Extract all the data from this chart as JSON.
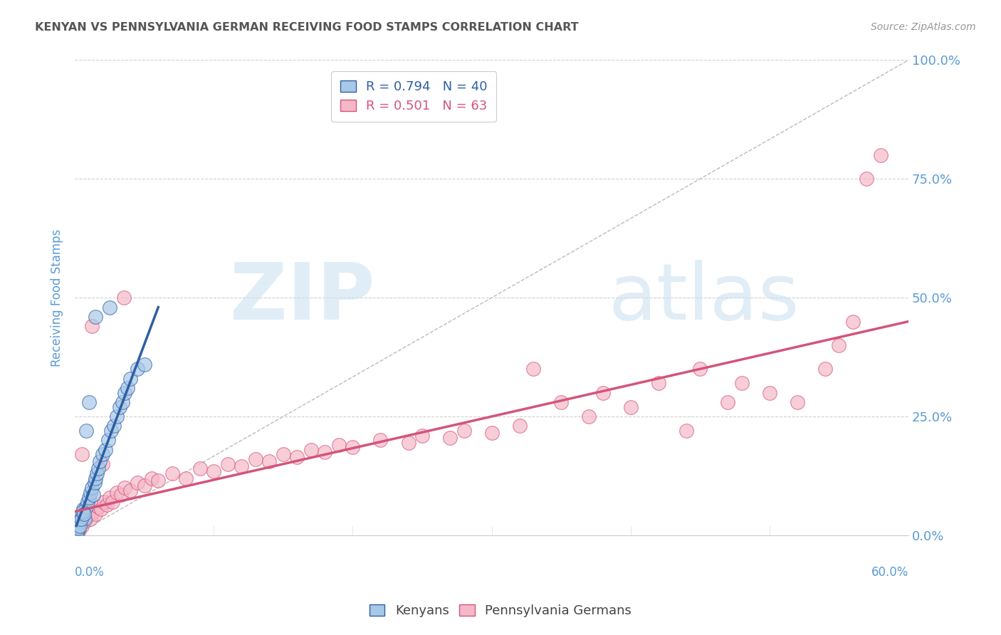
{
  "title": "KENYAN VS PENNSYLVANIA GERMAN RECEIVING FOOD STAMPS CORRELATION CHART",
  "source": "Source: ZipAtlas.com",
  "ylabel": "Receiving Food Stamps",
  "yticks": [
    0.0,
    25.0,
    50.0,
    75.0,
    100.0
  ],
  "ytick_labels": [
    "0.0%",
    "25.0%",
    "50.0%",
    "75.0%",
    "100.0%"
  ],
  "xtick_labels": [
    "0.0%",
    "60.0%"
  ],
  "xlim": [
    0.0,
    60.0
  ],
  "ylim": [
    0.0,
    100.0
  ],
  "kenyan_color": "#a8c8e8",
  "pg_color": "#f5b8c8",
  "kenyan_line_color": "#2e5fa3",
  "pg_line_color": "#d4547a",
  "title_color": "#555555",
  "axis_label_color": "#5b9bd5",
  "tick_color": "#5b9bd5",
  "legend_r1": "R = 0.794",
  "legend_n1": "N = 40",
  "legend_r2": "R = 0.501",
  "legend_n2": "N = 63",
  "kenyan_points": [
    [
      0.2,
      1.0
    ],
    [
      0.3,
      2.5
    ],
    [
      0.4,
      3.0
    ],
    [
      0.5,
      4.0
    ],
    [
      0.6,
      5.5
    ],
    [
      0.7,
      3.5
    ],
    [
      0.8,
      6.0
    ],
    [
      0.9,
      7.0
    ],
    [
      1.0,
      8.0
    ],
    [
      1.1,
      9.0
    ],
    [
      1.2,
      10.0
    ],
    [
      1.3,
      8.5
    ],
    [
      1.4,
      11.0
    ],
    [
      1.5,
      12.0
    ],
    [
      1.6,
      13.0
    ],
    [
      1.7,
      14.0
    ],
    [
      1.8,
      15.5
    ],
    [
      2.0,
      17.0
    ],
    [
      2.2,
      18.0
    ],
    [
      2.4,
      20.0
    ],
    [
      2.6,
      22.0
    ],
    [
      2.8,
      23.0
    ],
    [
      3.0,
      25.0
    ],
    [
      3.2,
      27.0
    ],
    [
      3.4,
      28.0
    ],
    [
      3.6,
      30.0
    ],
    [
      3.8,
      31.0
    ],
    [
      4.0,
      33.0
    ],
    [
      4.5,
      35.0
    ],
    [
      5.0,
      36.0
    ],
    [
      0.15,
      0.5
    ],
    [
      0.25,
      1.5
    ],
    [
      0.35,
      2.0
    ],
    [
      0.45,
      3.5
    ],
    [
      0.55,
      5.0
    ],
    [
      0.65,
      4.5
    ],
    [
      1.5,
      46.0
    ],
    [
      2.5,
      48.0
    ],
    [
      0.8,
      22.0
    ],
    [
      1.0,
      28.0
    ]
  ],
  "pg_points": [
    [
      0.3,
      1.0
    ],
    [
      0.5,
      2.0
    ],
    [
      0.7,
      3.0
    ],
    [
      0.9,
      4.0
    ],
    [
      1.1,
      3.5
    ],
    [
      1.3,
      5.0
    ],
    [
      1.5,
      4.5
    ],
    [
      1.7,
      6.0
    ],
    [
      1.9,
      5.5
    ],
    [
      2.1,
      7.0
    ],
    [
      2.3,
      6.5
    ],
    [
      2.5,
      8.0
    ],
    [
      2.7,
      7.0
    ],
    [
      3.0,
      9.0
    ],
    [
      3.3,
      8.5
    ],
    [
      3.6,
      10.0
    ],
    [
      4.0,
      9.5
    ],
    [
      4.5,
      11.0
    ],
    [
      5.0,
      10.5
    ],
    [
      5.5,
      12.0
    ],
    [
      6.0,
      11.5
    ],
    [
      7.0,
      13.0
    ],
    [
      8.0,
      12.0
    ],
    [
      9.0,
      14.0
    ],
    [
      10.0,
      13.5
    ],
    [
      11.0,
      15.0
    ],
    [
      12.0,
      14.5
    ],
    [
      13.0,
      16.0
    ],
    [
      14.0,
      15.5
    ],
    [
      15.0,
      17.0
    ],
    [
      16.0,
      16.5
    ],
    [
      17.0,
      18.0
    ],
    [
      18.0,
      17.5
    ],
    [
      19.0,
      19.0
    ],
    [
      20.0,
      18.5
    ],
    [
      22.0,
      20.0
    ],
    [
      24.0,
      19.5
    ],
    [
      25.0,
      21.0
    ],
    [
      27.0,
      20.5
    ],
    [
      28.0,
      22.0
    ],
    [
      30.0,
      21.5
    ],
    [
      32.0,
      23.0
    ],
    [
      33.0,
      35.0
    ],
    [
      35.0,
      28.0
    ],
    [
      37.0,
      25.0
    ],
    [
      38.0,
      30.0
    ],
    [
      40.0,
      27.0
    ],
    [
      42.0,
      32.0
    ],
    [
      44.0,
      22.0
    ],
    [
      45.0,
      35.0
    ],
    [
      47.0,
      28.0
    ],
    [
      48.0,
      32.0
    ],
    [
      50.0,
      30.0
    ],
    [
      52.0,
      28.0
    ],
    [
      54.0,
      35.0
    ],
    [
      55.0,
      40.0
    ],
    [
      56.0,
      45.0
    ],
    [
      57.0,
      75.0
    ],
    [
      58.0,
      80.0
    ],
    [
      1.2,
      44.0
    ],
    [
      2.0,
      15.0
    ],
    [
      3.5,
      50.0
    ],
    [
      0.5,
      17.0
    ]
  ],
  "kenyan_line": {
    "x0": 0.1,
    "y0": 2.0,
    "x1": 6.0,
    "y1": 48.0
  },
  "pg_line": {
    "x0": 0.0,
    "y0": 5.0,
    "x1": 60.0,
    "y1": 45.0
  },
  "diag_line": {
    "x0": 0.0,
    "y0": 0.0,
    "x1": 60.0,
    "y1": 100.0
  },
  "background_color": "#ffffff",
  "grid_color": "#d0d0d0"
}
